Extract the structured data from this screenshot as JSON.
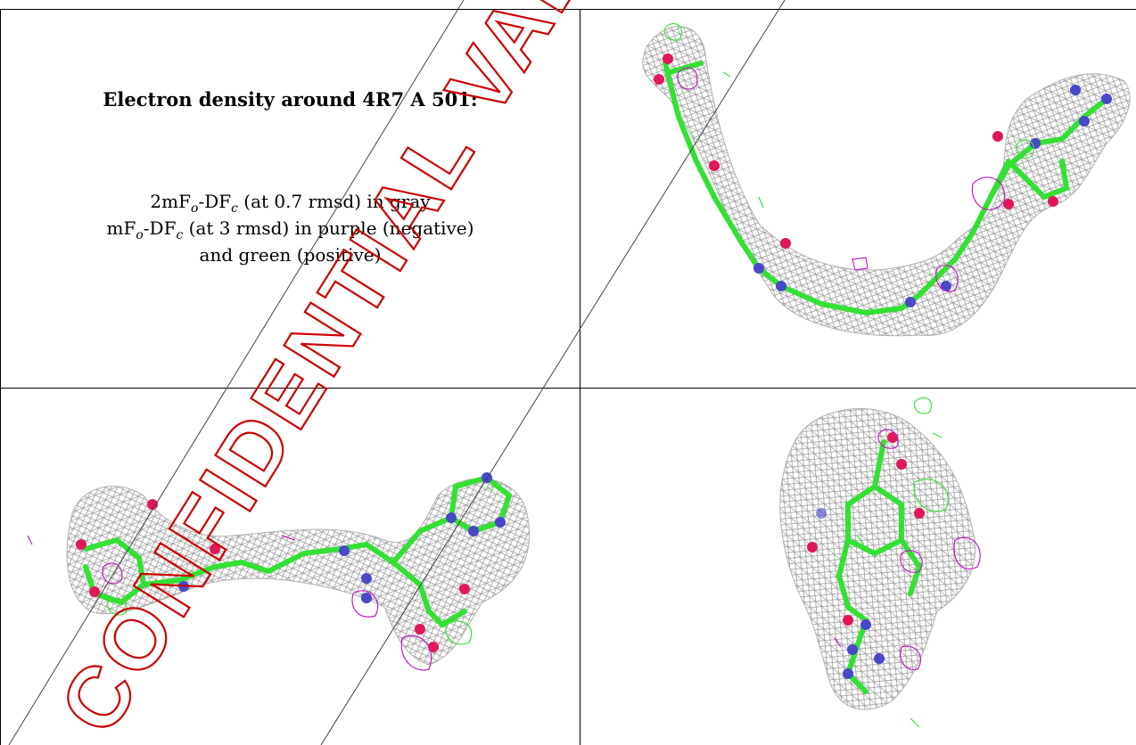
{
  "caption": {
    "title": "Electron density around 4R7 A 501:",
    "line1_prefix": "2mF",
    "line1_mid": "-DF",
    "line1_suffix": " (at 0.7 rmsd) in gray",
    "line2_prefix": "mF",
    "line2_mid": "-DF",
    "line2_suffix": " (at 3 rmsd) in purple (negative)",
    "line3": "and green (positive)",
    "sub_o": "o",
    "sub_c": "c"
  },
  "watermark": {
    "text": "CONFIDENTIAL VALIDATION",
    "color": "#cc0000"
  },
  "colors": {
    "mesh_gray": "#9a9a9a",
    "carbon_green": "#33e033",
    "oxygen_red": "#e0185a",
    "nitrogen_blue": "#4848c8",
    "neg_purple": "#c020c0",
    "pos_green": "#40e040"
  },
  "views": [
    {
      "name": "view-top-right",
      "description_icon": "ligand-density-view-1"
    },
    {
      "name": "view-bottom-left",
      "description_icon": "ligand-density-view-2"
    },
    {
      "name": "view-bottom-right",
      "description_icon": "ligand-density-view-3"
    }
  ]
}
